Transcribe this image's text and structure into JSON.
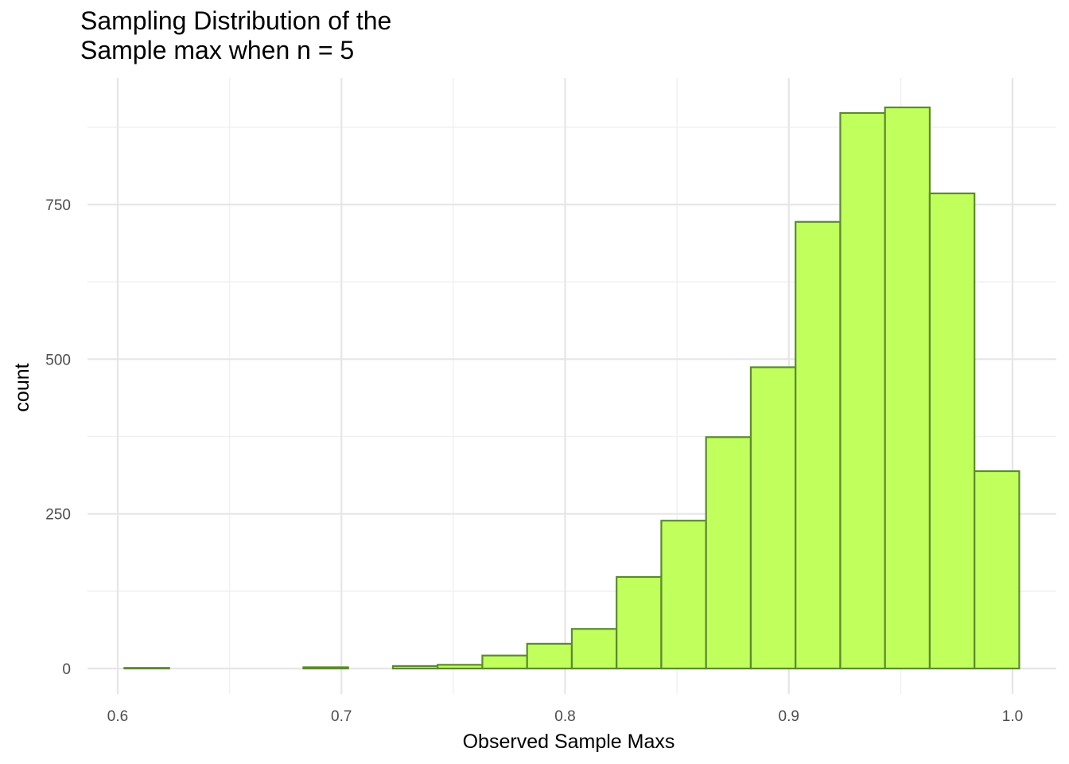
{
  "chart_data": {
    "type": "bar",
    "title_lines": [
      "Sampling Distribution of the",
      "Sample max when n = 5"
    ],
    "xlabel": "Observed Sample Maxs",
    "ylabel": "count",
    "xlim": [
      0.6,
      1.0
    ],
    "ylim": [
      0,
      900
    ],
    "x_ticks": [
      0.6,
      0.7,
      0.8,
      0.9,
      1.0
    ],
    "x_tick_labels": [
      "0.6",
      "0.7",
      "0.8",
      "0.9",
      "1.0"
    ],
    "y_ticks": [
      0,
      250,
      500,
      750
    ],
    "y_tick_labels": [
      "0",
      "250",
      "500",
      "750"
    ],
    "grid": true,
    "bar_fill": "#C1FF5C",
    "bar_stroke": "#5C8A2E",
    "bins": [
      {
        "x0": 0.603,
        "x1": 0.623,
        "count": 1
      },
      {
        "x0": 0.623,
        "x1": 0.643,
        "count": 0
      },
      {
        "x0": 0.643,
        "x1": 0.663,
        "count": 0
      },
      {
        "x0": 0.663,
        "x1": 0.683,
        "count": 0
      },
      {
        "x0": 0.683,
        "x1": 0.703,
        "count": 2
      },
      {
        "x0": 0.703,
        "x1": 0.723,
        "count": 0
      },
      {
        "x0": 0.723,
        "x1": 0.743,
        "count": 4
      },
      {
        "x0": 0.743,
        "x1": 0.763,
        "count": 6
      },
      {
        "x0": 0.763,
        "x1": 0.783,
        "count": 21
      },
      {
        "x0": 0.783,
        "x1": 0.803,
        "count": 40
      },
      {
        "x0": 0.803,
        "x1": 0.823,
        "count": 64
      },
      {
        "x0": 0.823,
        "x1": 0.843,
        "count": 148
      },
      {
        "x0": 0.843,
        "x1": 0.863,
        "count": 239
      },
      {
        "x0": 0.863,
        "x1": 0.883,
        "count": 374
      },
      {
        "x0": 0.883,
        "x1": 0.903,
        "count": 487
      },
      {
        "x0": 0.903,
        "x1": 0.923,
        "count": 722
      },
      {
        "x0": 0.923,
        "x1": 0.943,
        "count": 898
      },
      {
        "x0": 0.943,
        "x1": 0.963,
        "count": 907
      },
      {
        "x0": 0.963,
        "x1": 0.983,
        "count": 768
      },
      {
        "x0": 0.983,
        "x1": 1.003,
        "count": 319
      }
    ]
  }
}
